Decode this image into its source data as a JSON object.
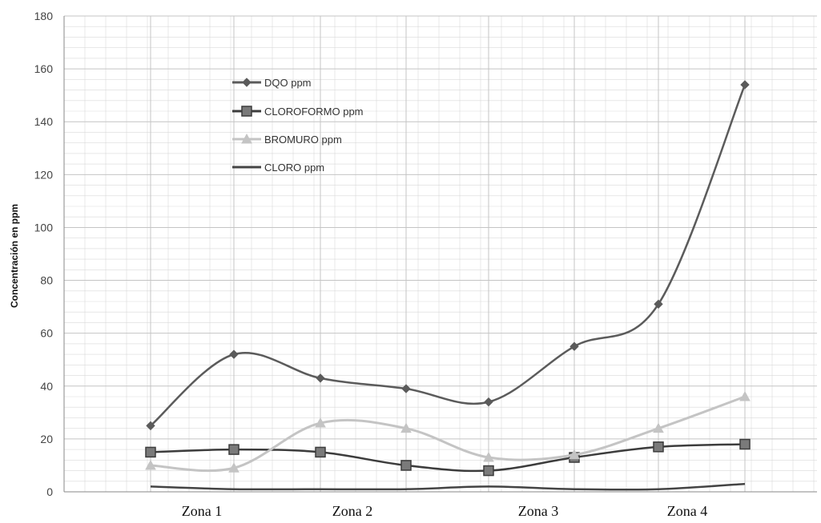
{
  "chart_data": {
    "type": "line",
    "title": "",
    "ylabel": "Concentración en ppm",
    "xlabel": "",
    "ylim": [
      0,
      180
    ],
    "yticks": [
      "0",
      "20",
      "40",
      "60",
      "80",
      "100",
      "120",
      "140",
      "160",
      "180"
    ],
    "grid": true,
    "legend_position": "top-left",
    "zones": [
      "Zona 1",
      "Zona 2",
      "Zona 3",
      "Zona 4"
    ],
    "points_per_series": 8,
    "series": [
      {
        "name": "DQO ppm",
        "color": "#5b5b5b",
        "marker": "diamond",
        "values": [
          25,
          52,
          43,
          39,
          34,
          55,
          71,
          154
        ]
      },
      {
        "name": "CLOROFORMO ppm",
        "color": "#3c3c3c",
        "marker": "square",
        "values": [
          15,
          16,
          15,
          10,
          8,
          13,
          17,
          18
        ]
      },
      {
        "name": "BROMURO ppm",
        "color": "#c4c4c4",
        "marker": "triangle",
        "values": [
          10,
          9,
          26,
          24,
          13,
          14,
          24,
          36
        ]
      },
      {
        "name": "CLORO ppm",
        "color": "#444444",
        "marker": "none",
        "values": [
          2,
          1,
          1,
          1,
          2,
          1,
          1,
          3
        ]
      }
    ]
  }
}
